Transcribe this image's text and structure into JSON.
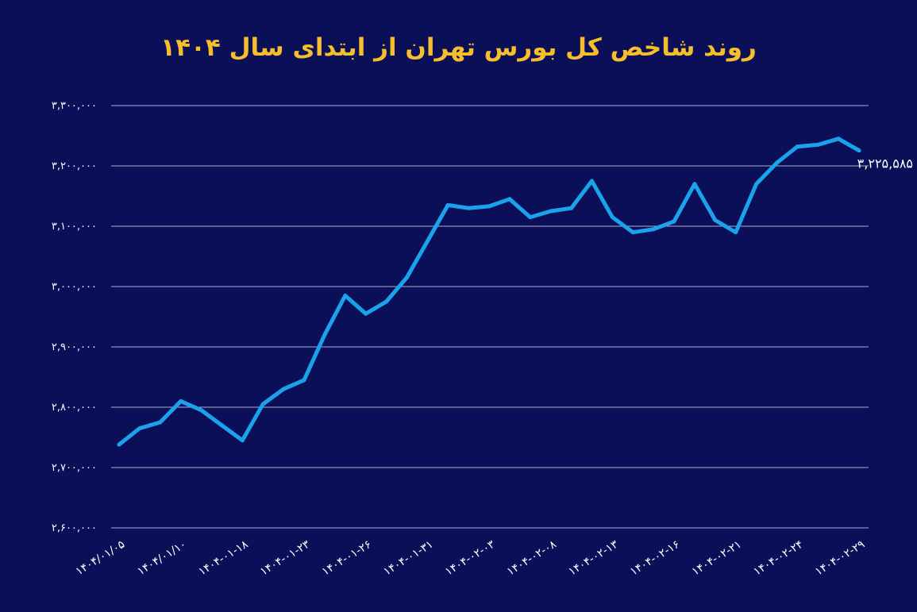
{
  "chart_data": {
    "type": "line",
    "title": "روند شاخص کل بورس تهران از ابتدای سال ۱۴۰۴",
    "xlabel": "",
    "ylabel": "",
    "ylim": [
      2600000,
      3300000
    ],
    "yticks": [
      {
        "value": 3300000,
        "label": "۳,۳۰۰,۰۰۰"
      },
      {
        "value": 3200000,
        "label": "۳,۲۰۰,۰۰۰"
      },
      {
        "value": 3100000,
        "label": "۳,۱۰۰,۰۰۰"
      },
      {
        "value": 3000000,
        "label": "۳,۰۰۰,۰۰۰"
      },
      {
        "value": 2900000,
        "label": "۲,۹۰۰,۰۰۰"
      },
      {
        "value": 2800000,
        "label": "۲,۸۰۰,۰۰۰"
      },
      {
        "value": 2700000,
        "label": "۲,۷۰۰,۰۰۰"
      },
      {
        "value": 2600000,
        "label": "۲,۶۰۰,۰۰۰"
      }
    ],
    "xtick_labels": [
      {
        "index": 0,
        "label": "۱۴۰۴/۰۱/۰۵"
      },
      {
        "index": 3,
        "label": "۱۴۰۴/۰۱/۱۰"
      },
      {
        "index": 6,
        "label": "۱۴۰۴-۰۱-۱۸"
      },
      {
        "index": 9,
        "label": "۱۴۰۴-۰۱-۲۳"
      },
      {
        "index": 12,
        "label": "۱۴۰۴-۰۱-۲۶"
      },
      {
        "index": 15,
        "label": "۱۴۰۴-۰۱-۳۱"
      },
      {
        "index": 18,
        "label": "۱۴۰۴-۰۲-۰۳"
      },
      {
        "index": 21,
        "label": "۱۴۰۴-۰۲-۰۸"
      },
      {
        "index": 24,
        "label": "۱۴۰۴-۰۲-۱۳"
      },
      {
        "index": 27,
        "label": "۱۴۰۴-۰۲-۱۶"
      },
      {
        "index": 30,
        "label": "۱۴۰۴-۰۲-۲۱"
      },
      {
        "index": 33,
        "label": "۱۴۰۴-۰۲-۲۴"
      },
      {
        "index": 36,
        "label": "۱۴۰۴-۰۲-۲۹"
      }
    ],
    "series": [
      {
        "values": [
          2738000,
          2765000,
          2775000,
          2810000,
          2795000,
          2770000,
          2745000,
          2805000,
          2830000,
          2845000,
          2920000,
          2985000,
          2955000,
          2975000,
          3015000,
          3075000,
          3135000,
          3130000,
          3133000,
          3145000,
          3115000,
          3125000,
          3130000,
          3175000,
          3115000,
          3090000,
          3095000,
          3108000,
          3170000,
          3110000,
          3090000,
          3170000,
          3205000,
          3232000,
          3235000,
          3245000,
          3225585
        ]
      }
    ],
    "last_value_label": "۳,۲۲۵,۵۸۵",
    "grid": true,
    "colors": {
      "background": "#0a0f57",
      "line": "#1aa3ec",
      "grid": "#c8cce0",
      "title": "#f6be2c",
      "text": "#ffffff"
    }
  }
}
